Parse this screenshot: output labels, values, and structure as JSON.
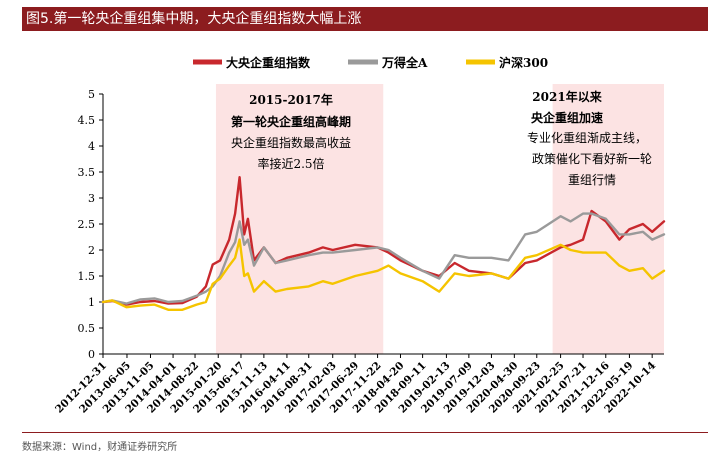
{
  "title": "图5.第一轮央企重组集中期，大央企重组指数大幅上涨",
  "source": "数据来源：Wind，财通证券研究所",
  "colors": {
    "title_bg": "#8c1c1f",
    "series_red": "#c8282d",
    "series_gray": "#9a9a9a",
    "series_yellow": "#f5c400",
    "shade": "#fce3e3"
  },
  "annotations": {
    "first": {
      "line1": "2015-2017年",
      "line2": "第一轮央企重组高峰期",
      "line3": "央企重组指数最高收益",
      "line4": "率接近2.5倍"
    },
    "second": {
      "line1": "2021年以来",
      "line2": "央企重组加速",
      "line3": "专业化重组渐成主线，",
      "line4": "政策催化下看好新一轮",
      "line5": "重组行情"
    }
  },
  "chart_data": {
    "type": "line",
    "title": "第一轮央企重组集中期，大央企重组指数大幅上涨",
    "xlabel": "",
    "ylabel": "",
    "ylim": [
      0,
      5
    ],
    "yticks": [
      "0",
      "0.5",
      "1",
      "1.5",
      "2",
      "2.5",
      "3",
      "3.5",
      "4",
      "4.5",
      "5"
    ],
    "x_start": "2012-12-31",
    "x_end": "2022-12-30",
    "x_tick_labels": [
      "2012-12-31",
      "2013-06-05",
      "2013-11-05",
      "2014-04-01",
      "2014-08-22",
      "2015-01-20",
      "2015-06-17",
      "2015-11-13",
      "2016-04-11",
      "2016-08-31",
      "2017-02-03",
      "2017-06-29",
      "2017-11-22",
      "2018-04-20",
      "2018-09-11",
      "2019-02-13",
      "2019-07-09",
      "2019-12-03",
      "2020-04-30",
      "2020-09-23",
      "2021-02-25",
      "2021-07-21",
      "2021-12-16",
      "2022-05-19",
      "2022-10-14"
    ],
    "shaded_ranges": [
      [
        "2015-01-05",
        "2017-12-29"
      ],
      [
        "2021-01-04",
        "2022-12-30"
      ]
    ],
    "legend": [
      "大央企重组指数",
      "万得全A",
      "沪深300"
    ],
    "series": [
      {
        "name": "大央企重组指数",
        "color": "#c8282d",
        "x": [
          "2012-12-31",
          "2013-03-01",
          "2013-06-01",
          "2013-09-01",
          "2013-12-01",
          "2014-03-01",
          "2014-06-01",
          "2014-09-01",
          "2014-11-01",
          "2014-12-15",
          "2015-02-01",
          "2015-04-01",
          "2015-05-10",
          "2015-06-08",
          "2015-07-08",
          "2015-08-01",
          "2015-09-10",
          "2015-11-13",
          "2016-01-28",
          "2016-04-11",
          "2016-08-31",
          "2016-12-01",
          "2017-02-03",
          "2017-06-29",
          "2017-11-22",
          "2018-02-01",
          "2018-04-20",
          "2018-09-11",
          "2018-12-28",
          "2019-04-08",
          "2019-07-09",
          "2019-12-03",
          "2020-03-23",
          "2020-07-10",
          "2020-09-23",
          "2021-02-25",
          "2021-05-01",
          "2021-07-21",
          "2021-09-15",
          "2021-12-16",
          "2022-03-15",
          "2022-05-19",
          "2022-08-15",
          "2022-10-14",
          "2022-12-30"
        ],
        "y": [
          1.0,
          1.02,
          0.95,
          1.0,
          1.02,
          0.97,
          0.98,
          1.1,
          1.3,
          1.72,
          1.8,
          2.2,
          2.7,
          3.4,
          2.3,
          2.6,
          1.8,
          2.05,
          1.75,
          1.85,
          1.95,
          2.05,
          2.0,
          2.1,
          2.05,
          1.95,
          1.8,
          1.6,
          1.5,
          1.75,
          1.6,
          1.55,
          1.45,
          1.75,
          1.8,
          2.05,
          2.1,
          2.2,
          2.75,
          2.55,
          2.2,
          2.4,
          2.5,
          2.35,
          2.55
        ]
      },
      {
        "name": "万得全A",
        "color": "#9a9a9a",
        "x": [
          "2012-12-31",
          "2013-03-01",
          "2013-06-01",
          "2013-09-01",
          "2013-12-01",
          "2014-03-01",
          "2014-06-01",
          "2014-09-01",
          "2014-11-01",
          "2014-12-15",
          "2015-02-01",
          "2015-04-01",
          "2015-05-10",
          "2015-06-08",
          "2015-07-08",
          "2015-08-01",
          "2015-09-10",
          "2015-11-13",
          "2016-01-28",
          "2016-04-11",
          "2016-08-31",
          "2016-12-01",
          "2017-02-03",
          "2017-06-29",
          "2017-11-22",
          "2018-02-01",
          "2018-04-20",
          "2018-09-11",
          "2018-12-28",
          "2019-04-08",
          "2019-07-09",
          "2019-12-03",
          "2020-03-23",
          "2020-07-10",
          "2020-09-23",
          "2021-02-25",
          "2021-05-01",
          "2021-07-21",
          "2021-09-15",
          "2021-12-16",
          "2022-03-15",
          "2022-05-19",
          "2022-08-15",
          "2022-10-14",
          "2022-12-30"
        ],
        "y": [
          1.0,
          1.03,
          0.97,
          1.05,
          1.07,
          1.0,
          1.02,
          1.12,
          1.2,
          1.3,
          1.5,
          1.95,
          2.15,
          2.55,
          2.1,
          2.2,
          1.7,
          2.05,
          1.75,
          1.8,
          1.9,
          1.95,
          1.95,
          2.0,
          2.05,
          2.0,
          1.85,
          1.6,
          1.45,
          1.9,
          1.85,
          1.85,
          1.8,
          2.3,
          2.35,
          2.65,
          2.55,
          2.7,
          2.7,
          2.6,
          2.3,
          2.3,
          2.35,
          2.2,
          2.3
        ]
      },
      {
        "name": "沪深300",
        "color": "#f5c400",
        "x": [
          "2012-12-31",
          "2013-03-01",
          "2013-06-01",
          "2013-09-01",
          "2013-12-01",
          "2014-03-01",
          "2014-06-01",
          "2014-09-01",
          "2014-11-01",
          "2014-12-15",
          "2015-02-01",
          "2015-04-01",
          "2015-05-10",
          "2015-06-08",
          "2015-07-08",
          "2015-08-01",
          "2015-09-10",
          "2015-11-13",
          "2016-01-28",
          "2016-04-11",
          "2016-08-31",
          "2016-12-01",
          "2017-02-03",
          "2017-06-29",
          "2017-11-22",
          "2018-02-01",
          "2018-04-20",
          "2018-09-11",
          "2018-12-28",
          "2019-04-08",
          "2019-07-09",
          "2019-12-03",
          "2020-03-23",
          "2020-07-10",
          "2020-09-23",
          "2021-02-25",
          "2021-05-01",
          "2021-07-21",
          "2021-09-15",
          "2021-12-16",
          "2022-03-15",
          "2022-05-19",
          "2022-08-15",
          "2022-10-14",
          "2022-12-30"
        ],
        "y": [
          1.0,
          1.03,
          0.9,
          0.93,
          0.95,
          0.85,
          0.85,
          0.95,
          1.0,
          1.35,
          1.45,
          1.7,
          1.85,
          2.2,
          1.5,
          1.55,
          1.2,
          1.4,
          1.2,
          1.25,
          1.3,
          1.4,
          1.35,
          1.5,
          1.6,
          1.7,
          1.55,
          1.4,
          1.2,
          1.55,
          1.5,
          1.55,
          1.45,
          1.85,
          1.9,
          2.1,
          2.0,
          1.95,
          1.95,
          1.95,
          1.7,
          1.6,
          1.65,
          1.45,
          1.6
        ]
      }
    ]
  }
}
